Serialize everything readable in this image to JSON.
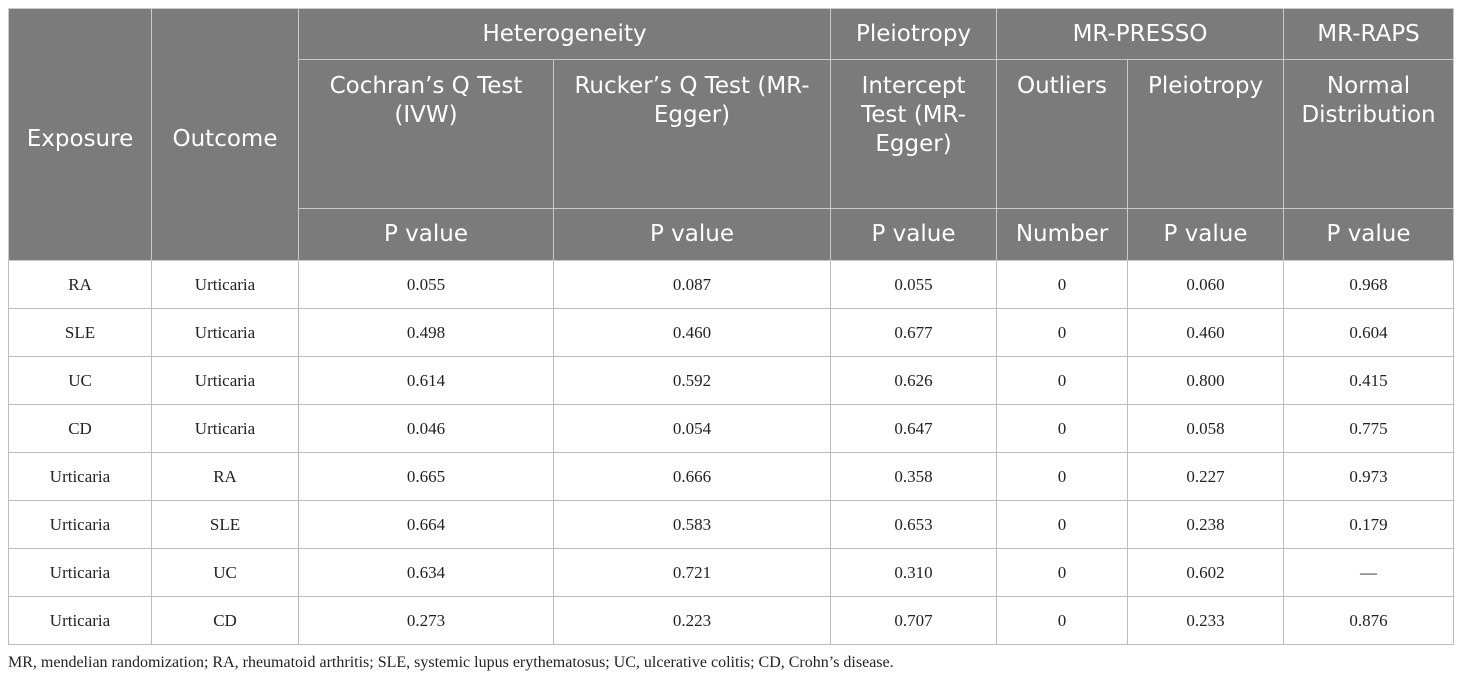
{
  "header": {
    "exposure": "Exposure",
    "outcome": "Outcome",
    "heterogeneity": "Heterogeneity",
    "pleiotropy": "Pleiotropy",
    "mr_presso": "MR-PRESSO",
    "mr_raps": "MR-RAPS",
    "cochran": "Cochran’s Q Test (IVW)",
    "rucker": "Rucker’s Q Test (MR-Egger)",
    "intercept": "Intercept Test (MR-Egger)",
    "outliers": "Outliers",
    "presso_pleiotropy": "Pleiotropy",
    "normal_distribution": "Normal Distribution",
    "units": [
      "P value",
      "P value",
      "P value",
      "Number",
      "P value",
      "P value"
    ]
  },
  "rows": [
    [
      "RA",
      "Urticaria",
      "0.055",
      "0.087",
      "0.055",
      "0",
      "0.060",
      "0.968"
    ],
    [
      "SLE",
      "Urticaria",
      "0.498",
      "0.460",
      "0.677",
      "0",
      "0.460",
      "0.604"
    ],
    [
      "UC",
      "Urticaria",
      "0.614",
      "0.592",
      "0.626",
      "0",
      "0.800",
      "0.415"
    ],
    [
      "CD",
      "Urticaria",
      "0.046",
      "0.054",
      "0.647",
      "0",
      "0.058",
      "0.775"
    ],
    [
      "Urticaria",
      "RA",
      "0.665",
      "0.666",
      "0.358",
      "0",
      "0.227",
      "0.973"
    ],
    [
      "Urticaria",
      "SLE",
      "0.664",
      "0.583",
      "0.653",
      "0",
      "0.238",
      "0.179"
    ],
    [
      "Urticaria",
      "UC",
      "0.634",
      "0.721",
      "0.310",
      "0",
      "0.602",
      "—"
    ],
    [
      "Urticaria",
      "CD",
      "0.273",
      "0.223",
      "0.707",
      "0",
      "0.233",
      "0.876"
    ]
  ],
  "footnote": "MR, mendelian randomization; RA, rheumatoid arthritis; SLE, systemic lupus erythematosus; UC, ulcerative colitis; CD, Crohn’s disease."
}
